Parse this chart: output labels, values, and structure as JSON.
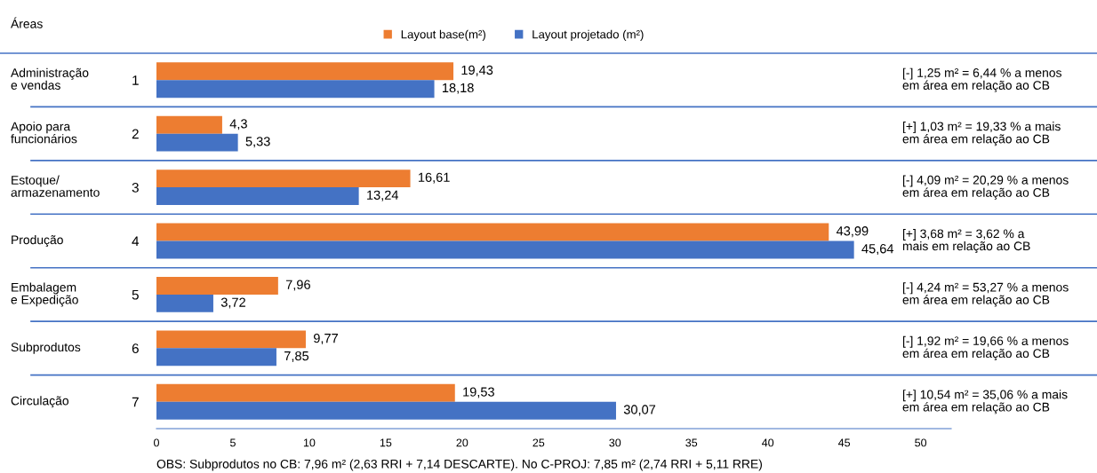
{
  "chart_data": {
    "type": "bar",
    "orientation": "horizontal",
    "categories": [
      "1",
      "2",
      "3",
      "4",
      "5",
      "6",
      "7"
    ],
    "series": [
      {
        "name": "Layout base(m²)",
        "color": "#ed7d31",
        "values": [
          19.43,
          4.3,
          16.61,
          43.99,
          7.96,
          9.77,
          19.53
        ],
        "value_labels": [
          "19,43",
          "4,3",
          "16,61",
          "43,99",
          "7,96",
          "9,77",
          "19,53"
        ]
      },
      {
        "name": "Layout projetado (m²)",
        "color": "#4472c4",
        "values": [
          18.18,
          5.33,
          13.24,
          45.64,
          3.72,
          7.85,
          30.07
        ],
        "value_labels": [
          "18,18",
          "5,33",
          "13,24",
          "45,64",
          "3,72",
          "7,85",
          "30,07"
        ]
      }
    ],
    "xlim": [
      0,
      52
    ],
    "xticks": [
      0,
      5,
      10,
      15,
      20,
      25,
      30,
      35,
      40,
      45,
      50
    ],
    "legend": "top",
    "grid": false,
    "annotations": [
      "Áreas",
      "Administração\ne vendas",
      "Apoio para\nfuncionários",
      "Estoque/\narmazenamento",
      "Produção",
      "Embalagem\ne Expedição",
      "Subprodutos",
      "Circulação",
      "[-] 1,25 m² = 6,44 % a menos\nem área em relação ao CB",
      "[+] 1,03 m² = 19,33 % a mais\nem área em relação ao CB",
      "[-] 4,09 m² = 20,29 % a menos\nem área em relação ao CB",
      "[+] 3,68 m² = 3,62 % a\nmais em relação ao CB",
      "[-] 4,24 m² = 53,27 % a menos\nem área em relação ao CB",
      "[-] 1,92 m² = 19,66 % a menos\nem área em relação ao CB",
      "[+] 10,54 m² = 35,06 % a mais\nem área em relação ao CB",
      "OBS: Subprodutos no CB: 7,96 m² (2,63 RRI + 7,14 DESCARTE). No C-PROJ: 7,85 m² (2,74 RRI + 5,11 RRE)"
    ]
  }
}
